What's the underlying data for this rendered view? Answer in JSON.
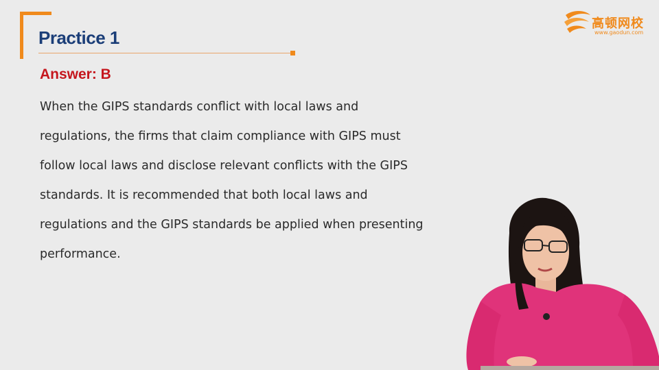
{
  "slide": {
    "title": "Practice 1",
    "answer": "Answer: B",
    "body_lines": [
      "When the GIPS standards  conflict with local laws and",
      "regulations, the firms that claim compliance with GIPS must",
      "follow local laws and disclose relevant conflicts with the GIPS",
      "standards. It is recommended that both local laws and",
      "regulations and the GIPS standards be applied when presenting",
      "performance."
    ]
  },
  "logo": {
    "name_cn": "高顿网校",
    "url": "www.gaodun.com",
    "icon": "swirl-logo-icon"
  },
  "colors": {
    "accent": "#f08a1c",
    "title": "#1b3e78",
    "answer": "#c5161d",
    "background": "#ebebeb"
  }
}
